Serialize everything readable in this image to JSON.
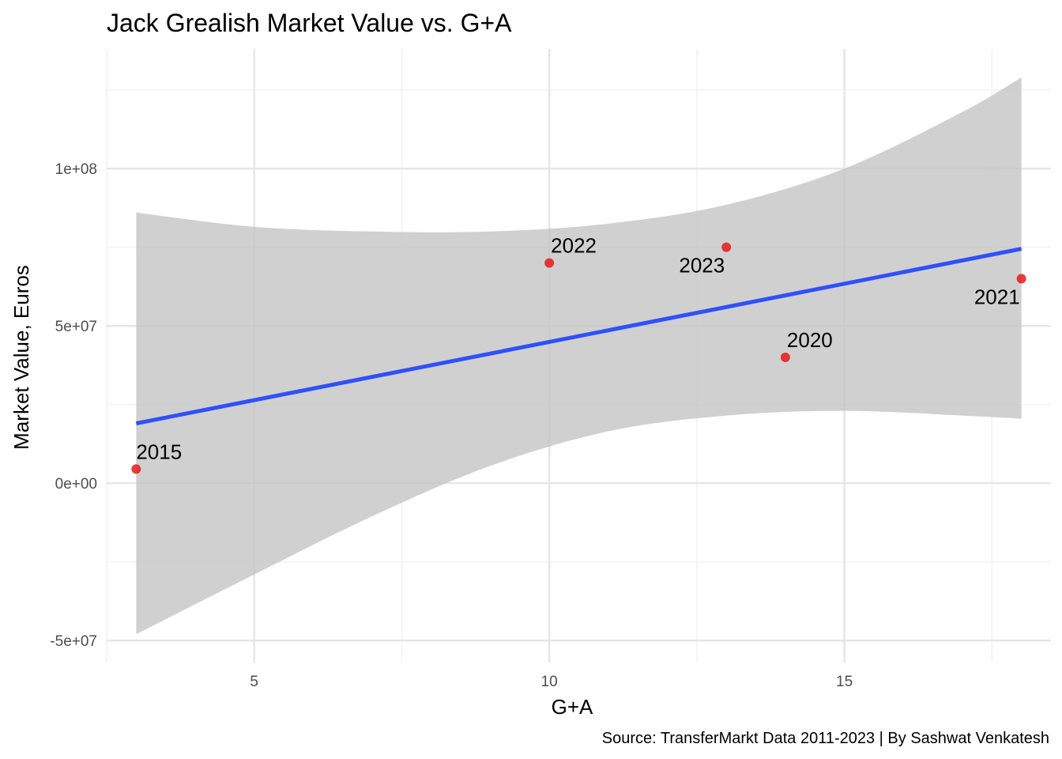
{
  "chart_data": {
    "type": "scatter",
    "title": "Jack Grealish Market Value vs. G+A",
    "xlabel": "G+A",
    "ylabel": "Market Value, Euros",
    "caption": "Source: TransferMarkt Data 2011-2023 | By Sashwat Venkatesh",
    "xlim": [
      2.5,
      18.5
    ],
    "ylim": [
      -57000000,
      138000000
    ],
    "x_ticks": [
      {
        "value": 5,
        "label": "5"
      },
      {
        "value": 10,
        "label": "10"
      },
      {
        "value": 15,
        "label": "15"
      }
    ],
    "x_minor": [
      2.5,
      7.5,
      12.5,
      17.5
    ],
    "y_ticks": [
      {
        "value": -50000000,
        "label": "-5e+07"
      },
      {
        "value": 0,
        "label": "0e+00"
      },
      {
        "value": 50000000,
        "label": "5e+07"
      },
      {
        "value": 100000000,
        "label": "1e+08"
      }
    ],
    "y_minor": [
      -25000000,
      25000000,
      75000000,
      125000000
    ],
    "grid": true,
    "points": [
      {
        "x": 3,
        "y": 4500000,
        "label": "2015"
      },
      {
        "x": 10,
        "y": 70000000,
        "label": "2022"
      },
      {
        "x": 13,
        "y": 75000000,
        "label": "2023"
      },
      {
        "x": 14,
        "y": 40000000,
        "label": "2020"
      },
      {
        "x": 18,
        "y": 65000000,
        "label": "2021"
      }
    ],
    "fit_line": {
      "x": [
        3,
        18
      ],
      "y": [
        19000000,
        74500000
      ]
    },
    "confidence_band": {
      "x": [
        3,
        5,
        7,
        9,
        11,
        13,
        15,
        17,
        18
      ],
      "upper": [
        86000000,
        81500000,
        80000000,
        80000000,
        82500000,
        88500000,
        100000000,
        118000000,
        129000000
      ],
      "lower": [
        -48000000,
        -29000000,
        -10500000,
        5500000,
        16500000,
        21500000,
        23000000,
        21500000,
        20500000
      ]
    },
    "colors": {
      "points": "#e41a1c",
      "line": "#3050f8",
      "band": "#c4c4c4",
      "grid_major": "#e6e6e6",
      "grid_minor": "#f2f2f2"
    }
  }
}
